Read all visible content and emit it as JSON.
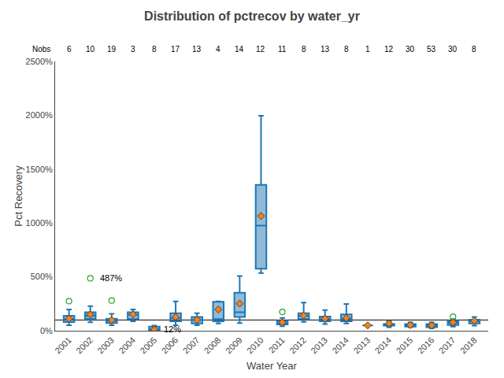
{
  "chart_data": {
    "type": "box",
    "title": "Distribution of pctrecov by water_yr",
    "xlabel": "Water Year",
    "ylabel": "Pct Recovery",
    "categories": [
      "2001",
      "2002",
      "2003",
      "2004",
      "2005",
      "2006",
      "2007",
      "2008",
      "2009",
      "2010",
      "2011",
      "2012",
      "2013",
      "2014",
      "2013",
      "2014",
      "2015",
      "2016",
      "2017",
      "2018"
    ],
    "q1": [
      80,
      112,
      72,
      108,
      8,
      88,
      68,
      88,
      128,
      575,
      58,
      108,
      88,
      88,
      50,
      48,
      38,
      33,
      53,
      68
    ],
    "median": [
      108,
      138,
      92,
      148,
      12,
      118,
      98,
      108,
      172,
      975,
      68,
      138,
      108,
      112,
      50,
      50,
      53,
      48,
      73,
      88
    ],
    "q3": [
      138,
      172,
      112,
      172,
      38,
      162,
      128,
      268,
      352,
      1355,
      92,
      162,
      132,
      152,
      50,
      63,
      63,
      63,
      92,
      102
    ],
    "mean": [
      112,
      152,
      98,
      152,
      12,
      128,
      102,
      198,
      252,
      1065,
      78,
      142,
      112,
      118,
      50,
      68,
      53,
      50,
      78,
      92
    ],
    "whislo": [
      52,
      78,
      52,
      88,
      8,
      52,
      52,
      68,
      72,
      535,
      42,
      82,
      62,
      68,
      50,
      32,
      32,
      22,
      38,
      48
    ],
    "whishi": [
      198,
      228,
      158,
      198,
      48,
      272,
      162,
      272,
      508,
      1995,
      118,
      262,
      192,
      248,
      50,
      88,
      78,
      78,
      108,
      128
    ],
    "fliers_high": [
      275,
      487,
      280,
      null,
      null,
      null,
      null,
      null,
      null,
      null,
      175,
      null,
      null,
      null,
      null,
      null,
      null,
      null,
      130,
      null
    ],
    "nobs_label": "Nobs",
    "nobs": [
      6,
      10,
      19,
      3,
      8,
      17,
      13,
      4,
      14,
      12,
      11,
      8,
      13,
      8,
      1,
      12,
      30,
      53,
      30,
      8
    ],
    "annotations": [
      {
        "category": "2002",
        "y": 487,
        "text": "487%"
      },
      {
        "category": "2005",
        "y": 12,
        "text": "12%"
      }
    ],
    "reference_line": 100,
    "ylim": [
      0,
      2500
    ],
    "yticks": [
      {
        "value": 0,
        "label": "0%"
      },
      {
        "value": 500,
        "label": "500%"
      },
      {
        "value": 1000,
        "label": "1000%"
      },
      {
        "value": 1500,
        "label": "1500%"
      },
      {
        "value": 2000,
        "label": "2000%"
      },
      {
        "value": 2500,
        "label": "2500%"
      }
    ],
    "grid": false
  }
}
